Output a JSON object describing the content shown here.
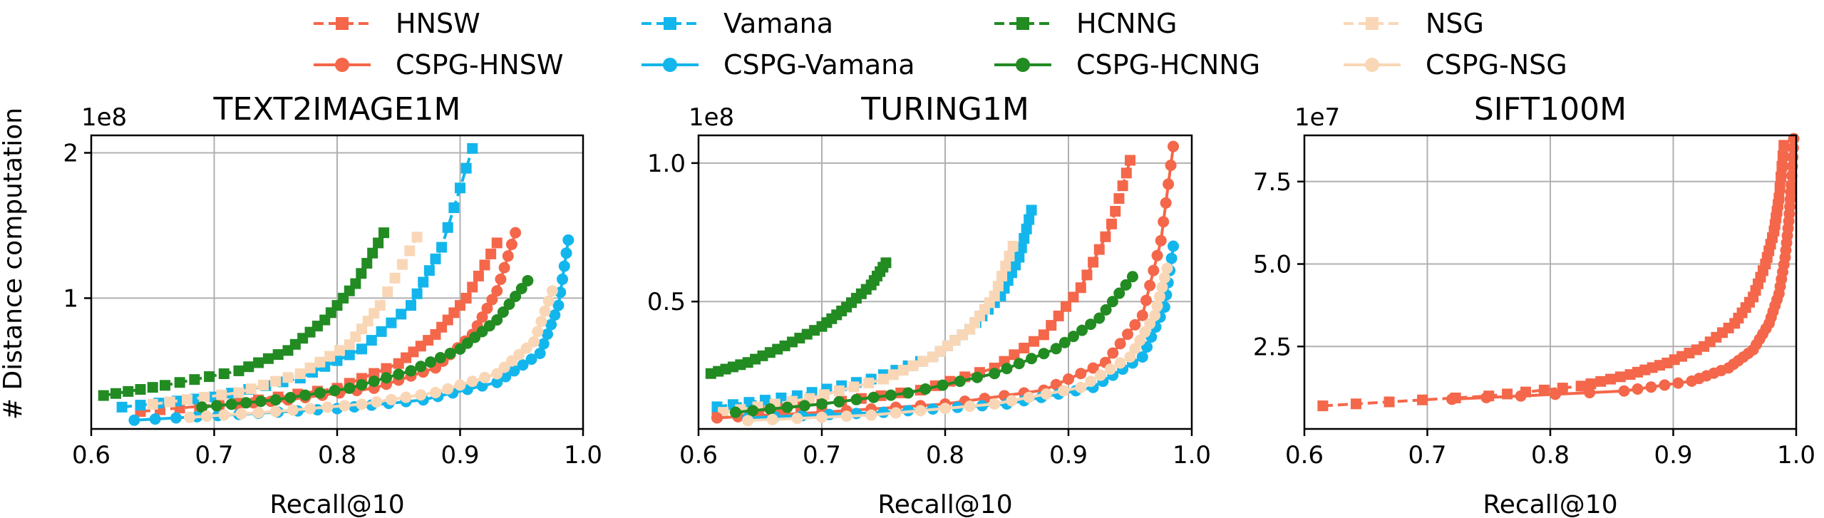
{
  "figure": {
    "ylabel": "# Distance computation",
    "xlabel": "Recall@10"
  },
  "legend": [
    {
      "name": "HNSW",
      "color": "#f4674a",
      "marker": "square",
      "dashed": true
    },
    {
      "name": "Vamana",
      "color": "#13b6ec",
      "marker": "square",
      "dashed": true
    },
    {
      "name": "HCNNG",
      "color": "#228b22",
      "marker": "square",
      "dashed": true
    },
    {
      "name": "NSG",
      "color": "#f9d7b6",
      "marker": "square",
      "dashed": true
    },
    {
      "name": "CSPG-HNSW",
      "color": "#f4674a",
      "marker": "circle",
      "dashed": false
    },
    {
      "name": "CSPG-Vamana",
      "color": "#13b6ec",
      "marker": "circle",
      "dashed": false
    },
    {
      "name": "CSPG-HCNNG",
      "color": "#228b22",
      "marker": "circle",
      "dashed": false
    },
    {
      "name": "CSPG-NSG",
      "color": "#f9d7b6",
      "marker": "circle",
      "dashed": false
    }
  ],
  "chart_data": [
    {
      "type": "line",
      "title": "TEXT2IMAGE1M",
      "xlabel": "Recall@10",
      "ylabel": "# Distance computation",
      "scale_label": "1e8",
      "xlim": [
        0.6,
        1.0
      ],
      "ylim": [
        0.1,
        2.12
      ],
      "xticks": [
        0.6,
        0.7,
        0.8,
        0.9,
        1.0
      ],
      "xtick_labels": [
        "0.6",
        "0.7",
        "0.8",
        "0.9",
        "1.0"
      ],
      "yticks": [
        1,
        2
      ],
      "ytick_labels": [
        "1",
        "2"
      ],
      "grid": true,
      "series": [
        {
          "name": "HNSW",
          "x": [
            0.64,
            0.72,
            0.8,
            0.85,
            0.88,
            0.905,
            0.93
          ],
          "y": [
            0.22,
            0.28,
            0.38,
            0.55,
            0.75,
            1.0,
            1.38
          ]
        },
        {
          "name": "Vamana",
          "x": [
            0.625,
            0.7,
            0.77,
            0.82,
            0.86,
            0.885,
            0.91
          ],
          "y": [
            0.25,
            0.32,
            0.45,
            0.65,
            0.95,
            1.35,
            2.03
          ]
        },
        {
          "name": "HCNNG",
          "x": [
            0.61,
            0.66,
            0.72,
            0.76,
            0.79,
            0.815,
            0.838
          ],
          "y": [
            0.33,
            0.4,
            0.5,
            0.64,
            0.85,
            1.1,
            1.45
          ]
        },
        {
          "name": "NSG",
          "x": [
            0.65,
            0.72,
            0.77,
            0.81,
            0.835,
            0.865
          ],
          "y": [
            0.27,
            0.35,
            0.48,
            0.68,
            0.95,
            1.42
          ]
        },
        {
          "name": "CSPG-HNSW",
          "x": [
            0.69,
            0.76,
            0.83,
            0.88,
            0.91,
            0.93,
            0.945
          ],
          "y": [
            0.25,
            0.3,
            0.38,
            0.52,
            0.75,
            1.05,
            1.45
          ]
        },
        {
          "name": "CSPG-Vamana",
          "x": [
            0.635,
            0.72,
            0.8,
            0.87,
            0.93,
            0.965,
            0.98,
            0.988
          ],
          "y": [
            0.16,
            0.2,
            0.24,
            0.3,
            0.42,
            0.62,
            0.95,
            1.4
          ]
        },
        {
          "name": "CSPG-HCNNG",
          "x": [
            0.69,
            0.75,
            0.81,
            0.86,
            0.9,
            0.93,
            0.955
          ],
          "y": [
            0.25,
            0.3,
            0.38,
            0.5,
            0.65,
            0.85,
            1.12
          ]
        },
        {
          "name": "CSPG-NSG",
          "x": [
            0.68,
            0.75,
            0.82,
            0.88,
            0.93,
            0.96,
            0.975
          ],
          "y": [
            0.18,
            0.22,
            0.27,
            0.35,
            0.48,
            0.7,
            1.05
          ]
        }
      ]
    },
    {
      "type": "line",
      "title": "TURING1M",
      "xlabel": "Recall@10",
      "scale_label": "1e8",
      "xlim": [
        0.6,
        1.0
      ],
      "ylim": [
        0.04,
        1.1
      ],
      "xticks": [
        0.6,
        0.7,
        0.8,
        0.9,
        1.0
      ],
      "xtick_labels": [
        "0.6",
        "0.7",
        "0.8",
        "0.9",
        "1.0"
      ],
      "yticks": [
        0.5,
        1.0
      ],
      "ytick_labels": [
        "0.5",
        "1.0"
      ],
      "grid": true,
      "series": [
        {
          "name": "HNSW",
          "x": [
            0.615,
            0.7,
            0.78,
            0.84,
            0.88,
            0.91,
            0.935,
            0.95
          ],
          "y": [
            0.09,
            0.13,
            0.18,
            0.26,
            0.38,
            0.55,
            0.78,
            1.01
          ]
        },
        {
          "name": "Vamana",
          "x": [
            0.615,
            0.68,
            0.74,
            0.79,
            0.82,
            0.845,
            0.86,
            0.87
          ],
          "y": [
            0.12,
            0.16,
            0.22,
            0.3,
            0.4,
            0.52,
            0.66,
            0.83
          ]
        },
        {
          "name": "HCNNG",
          "x": [
            0.61,
            0.64,
            0.67,
            0.7,
            0.72,
            0.74,
            0.752
          ],
          "y": [
            0.24,
            0.28,
            0.34,
            0.41,
            0.48,
            0.56,
            0.64
          ]
        },
        {
          "name": "NSG",
          "x": [
            0.62,
            0.69,
            0.75,
            0.79,
            0.82,
            0.84,
            0.855
          ],
          "y": [
            0.1,
            0.15,
            0.22,
            0.3,
            0.4,
            0.52,
            0.7
          ]
        },
        {
          "name": "CSPG-HNSW",
          "x": [
            0.615,
            0.7,
            0.8,
            0.88,
            0.93,
            0.96,
            0.975,
            0.985
          ],
          "y": [
            0.08,
            0.1,
            0.13,
            0.18,
            0.28,
            0.45,
            0.72,
            1.06
          ]
        },
        {
          "name": "CSPG-Vamana",
          "x": [
            0.64,
            0.75,
            0.85,
            0.92,
            0.96,
            0.978,
            0.985
          ],
          "y": [
            0.08,
            0.1,
            0.13,
            0.19,
            0.3,
            0.48,
            0.7
          ]
        },
        {
          "name": "CSPG-HCNNG",
          "x": [
            0.63,
            0.7,
            0.77,
            0.84,
            0.89,
            0.925,
            0.952
          ],
          "y": [
            0.1,
            0.13,
            0.17,
            0.24,
            0.33,
            0.44,
            0.59
          ]
        },
        {
          "name": "CSPG-NSG",
          "x": [
            0.64,
            0.74,
            0.84,
            0.91,
            0.95,
            0.97,
            0.98
          ],
          "y": [
            0.07,
            0.09,
            0.13,
            0.19,
            0.3,
            0.45,
            0.62
          ]
        }
      ]
    },
    {
      "type": "line",
      "title": "SIFT100M",
      "xlabel": "Recall@10",
      "scale_label": "1e7",
      "xlim": [
        0.6,
        1.0
      ],
      "ylim": [
        0.0,
        8.9
      ],
      "xticks": [
        0.6,
        0.7,
        0.8,
        0.9,
        1.0
      ],
      "xtick_labels": [
        "0.6",
        "0.7",
        "0.8",
        "0.9",
        "1.0"
      ],
      "yticks": [
        2.5,
        5.0,
        7.5
      ],
      "ytick_labels": [
        "2.5",
        "5.0",
        "7.5"
      ],
      "grid": true,
      "series": [
        {
          "name": "HNSW",
          "x": [
            0.615,
            0.75,
            0.825,
            0.865,
            0.895,
            0.925,
            0.95,
            0.965,
            0.975,
            0.982,
            0.986,
            0.99
          ],
          "y": [
            0.7,
            1.0,
            1.3,
            1.65,
            2.0,
            2.5,
            3.2,
            4.0,
            5.0,
            6.0,
            7.0,
            8.6
          ]
        },
        {
          "name": "CSPG-HNSW",
          "x": [
            0.72,
            0.86,
            0.915,
            0.945,
            0.965,
            0.978,
            0.986,
            0.991,
            0.994,
            0.996,
            0.998
          ],
          "y": [
            0.9,
            1.15,
            1.45,
            1.85,
            2.4,
            3.2,
            4.1,
            5.2,
            6.3,
            7.4,
            8.8
          ]
        }
      ]
    }
  ]
}
